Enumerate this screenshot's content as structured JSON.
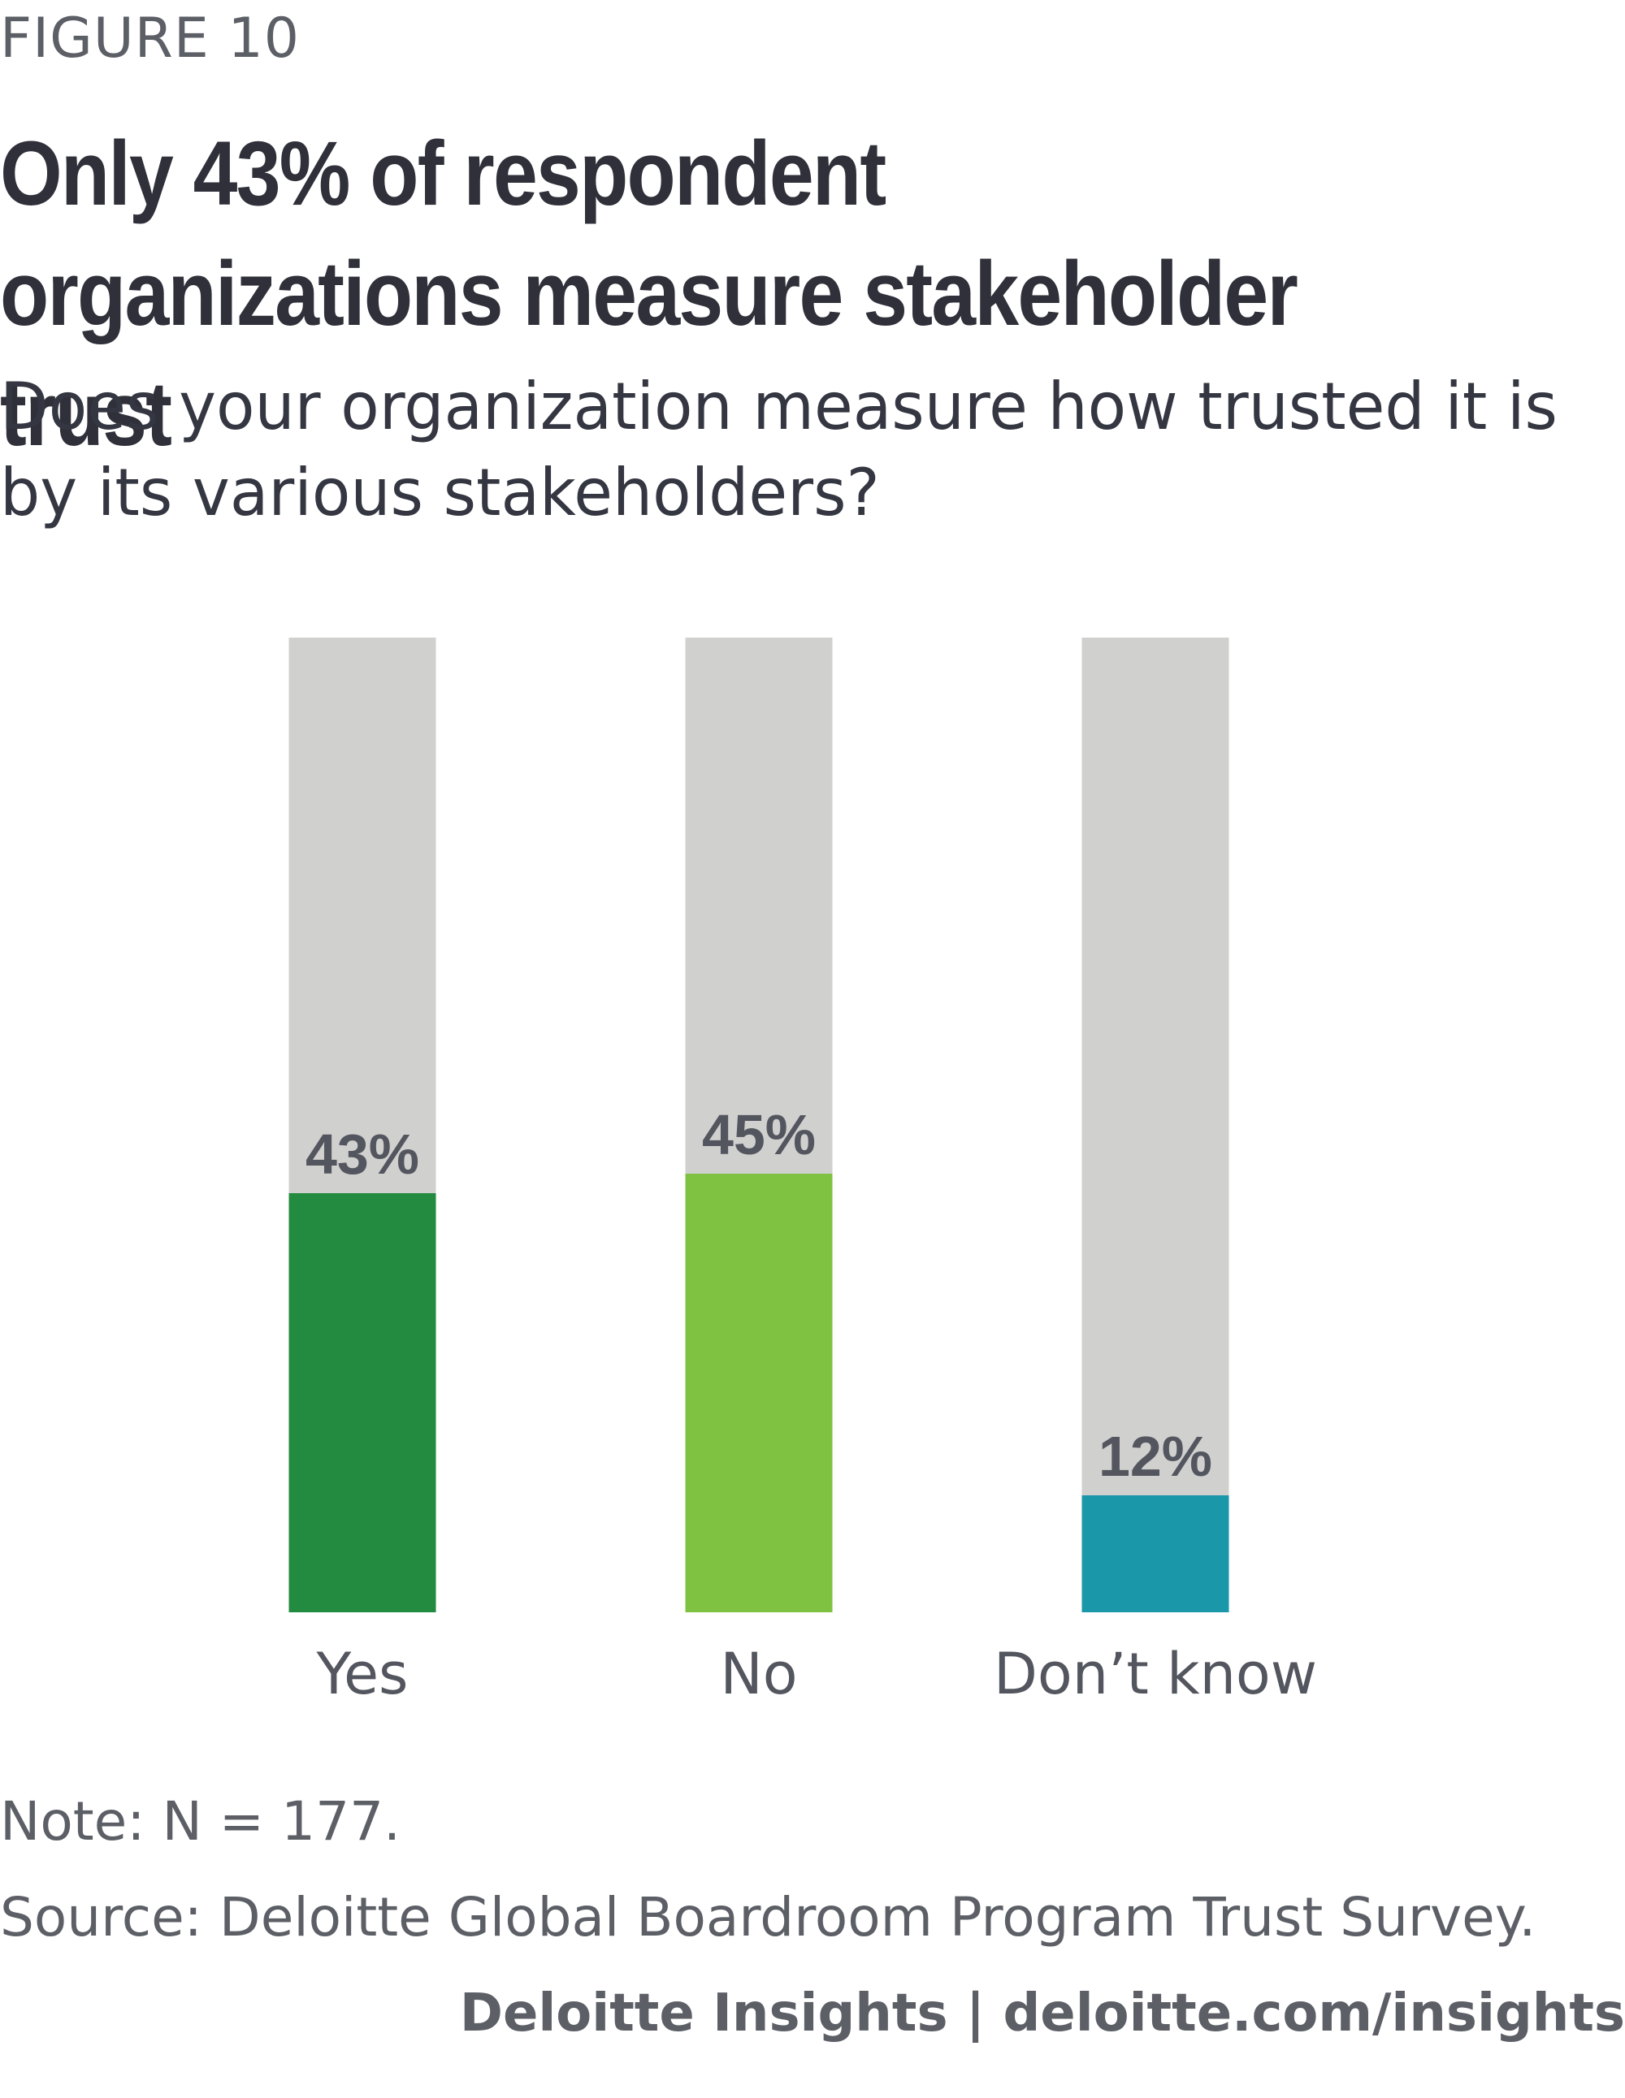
{
  "figure_label": "FIGURE 10",
  "note": "Note: N = 177.",
  "source": "Source: Deloitte Global Boardroom Program Trust Survey.",
  "brand": "Deloitte Insights | deloitte.com/insights",
  "chart_data": {
    "type": "bar",
    "title": "Only 43% of respondent organizations measure stakeholder trust",
    "subtitle": "Does your organization measure how trusted it is by its various stakeholders?",
    "categories": [
      "Yes",
      "No",
      "Don’t know"
    ],
    "values": [
      43,
      45,
      12
    ],
    "value_labels": [
      "43%",
      "45%",
      "12%"
    ],
    "ylim": [
      0,
      100
    ],
    "colors": [
      "#238b3f",
      "#7fc242",
      "#1b97aa"
    ],
    "track_color": "#d0d0cf",
    "grid": false
  }
}
